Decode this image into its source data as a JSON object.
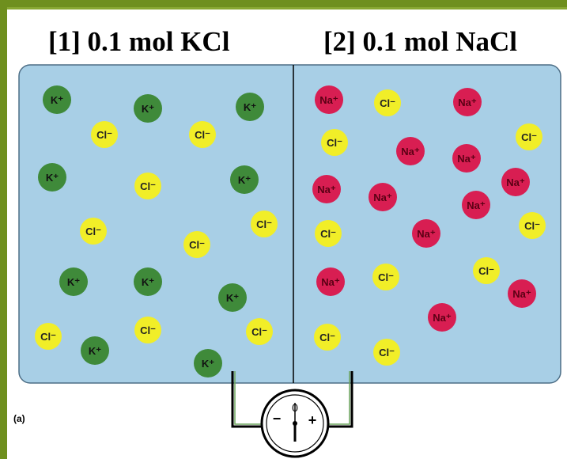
{
  "titles": {
    "left": "[1]  0.1 mol KCl",
    "right": "[2]  0.1 mol NaCl"
  },
  "caption": "(a)",
  "meter": {
    "zero": "0",
    "minus": "−",
    "plus": "+"
  },
  "ion_types": {
    "K": {
      "label": "K⁺",
      "fill": "#3f8a3a",
      "text": "#111111"
    },
    "Na": {
      "label": "Na⁺",
      "fill": "#d81e52",
      "text": "#5a0014"
    },
    "Cl": {
      "label": "Cl⁻",
      "fill": "#f1ee28",
      "text": "#222222"
    }
  },
  "compartments": {
    "left": [
      "K",
      "K",
      "K",
      "Cl",
      "Cl",
      "K",
      "Cl",
      "K",
      "Cl",
      "Cl",
      "Cl",
      "K",
      "K",
      "K",
      "Cl",
      "Cl",
      "K",
      "Cl",
      "K"
    ],
    "right": [
      "Na",
      "Cl",
      "Na",
      "Cl",
      "Na",
      "Na",
      "Cl",
      "Na",
      "Na",
      "Na",
      "Na",
      "Cl",
      "Cl",
      "Na",
      "Cl",
      "Na",
      "Cl",
      "Na",
      "Na",
      "Cl",
      "Cl"
    ]
  },
  "colors": {
    "solution": "#a8cfe6",
    "frame": "#6e8f1e",
    "wire": "#000000"
  }
}
